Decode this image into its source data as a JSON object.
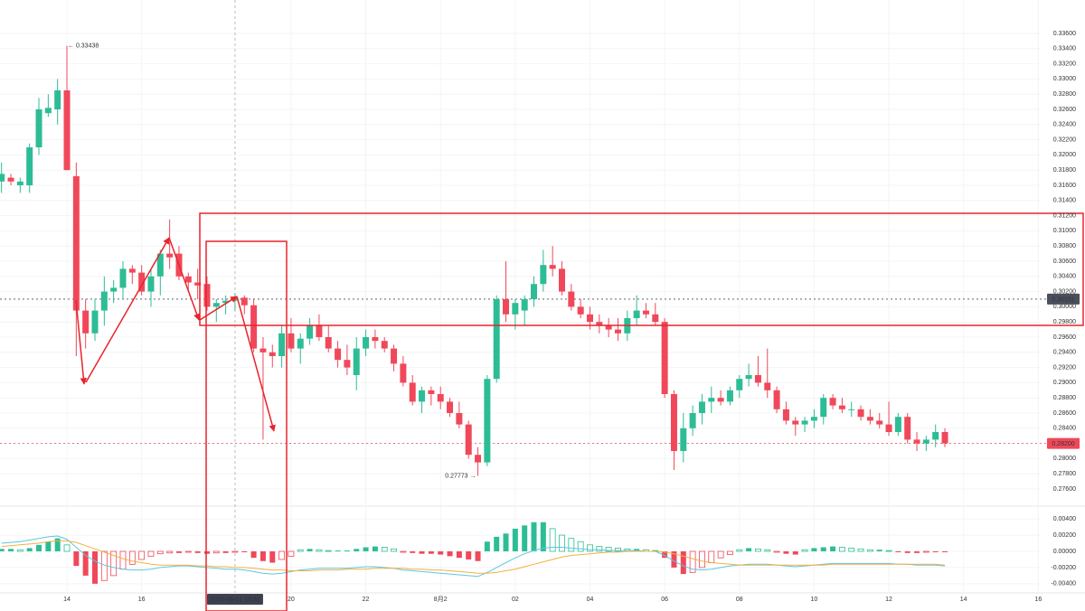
{
  "chart_data": {
    "type": "candlestick",
    "up_color": "#2dbd96",
    "down_color": "#f0485a",
    "candles": [
      [
        0.3165,
        0.319,
        0.315,
        0.3175
      ],
      [
        0.317,
        0.3175,
        0.316,
        0.3165
      ],
      [
        0.316,
        0.317,
        0.315,
        0.3165
      ],
      [
        0.316,
        0.3215,
        0.315,
        0.321
      ],
      [
        0.321,
        0.3275,
        0.32,
        0.326
      ],
      [
        0.3255,
        0.328,
        0.325,
        0.3262
      ],
      [
        0.326,
        0.33,
        0.324,
        0.3285
      ],
      [
        0.3285,
        0.33438,
        0.318,
        0.318
      ],
      [
        0.3172,
        0.319,
        0.2935,
        0.2995
      ],
      [
        0.2995,
        0.301,
        0.2945,
        0.2965
      ],
      [
        0.2965,
        0.301,
        0.2955,
        0.2995
      ],
      [
        0.2995,
        0.304,
        0.2975,
        0.302
      ],
      [
        0.302,
        0.3035,
        0.3005,
        0.3025
      ],
      [
        0.3025,
        0.306,
        0.301,
        0.305
      ],
      [
        0.305,
        0.3055,
        0.303,
        0.3045
      ],
      [
        0.3045,
        0.3055,
        0.3015,
        0.302
      ],
      [
        0.302,
        0.305,
        0.3,
        0.304
      ],
      [
        0.304,
        0.3075,
        0.3015,
        0.307
      ],
      [
        0.307,
        0.3115,
        0.305,
        0.3065
      ],
      [
        0.307,
        0.308,
        0.3035,
        0.304
      ],
      [
        0.304,
        0.3045,
        0.302,
        0.3032
      ],
      [
        0.3032,
        0.305,
        0.301,
        0.3028
      ],
      [
        0.303,
        0.304,
        0.2995,
        0.3
      ],
      [
        0.3,
        0.301,
        0.298,
        0.3005
      ],
      [
        0.3005,
        0.3015,
        0.299,
        0.3008
      ],
      [
        0.3008,
        0.3018,
        0.2995,
        0.3012
      ],
      [
        0.3012,
        0.3015,
        0.299,
        0.3002
      ],
      [
        0.3002,
        0.301,
        0.294,
        0.2945
      ],
      [
        0.2945,
        0.296,
        0.2825,
        0.294
      ],
      [
        0.294,
        0.295,
        0.292,
        0.2935
      ],
      [
        0.2935,
        0.2975,
        0.292,
        0.2965
      ],
      [
        0.2965,
        0.2985,
        0.294,
        0.2945
      ],
      [
        0.2945,
        0.2965,
        0.2925,
        0.2958
      ],
      [
        0.2958,
        0.2985,
        0.295,
        0.2975
      ],
      [
        0.2975,
        0.299,
        0.2955,
        0.296
      ],
      [
        0.296,
        0.2975,
        0.294,
        0.2945
      ],
      [
        0.2945,
        0.2955,
        0.292,
        0.293
      ],
      [
        0.293,
        0.295,
        0.291,
        0.292
      ],
      [
        0.291,
        0.296,
        0.289,
        0.2945
      ],
      [
        0.2945,
        0.297,
        0.2935,
        0.296
      ],
      [
        0.296,
        0.297,
        0.2945,
        0.2955
      ],
      [
        0.2955,
        0.296,
        0.294,
        0.2945
      ],
      [
        0.2945,
        0.295,
        0.2915,
        0.2925
      ],
      [
        0.2925,
        0.2935,
        0.2895,
        0.29
      ],
      [
        0.29,
        0.291,
        0.287,
        0.2875
      ],
      [
        0.2875,
        0.2895,
        0.286,
        0.289
      ],
      [
        0.289,
        0.2895,
        0.287,
        0.2885
      ],
      [
        0.2885,
        0.2895,
        0.2865,
        0.2875
      ],
      [
        0.2875,
        0.288,
        0.2855,
        0.286
      ],
      [
        0.286,
        0.2875,
        0.284,
        0.2845
      ],
      [
        0.2845,
        0.285,
        0.28,
        0.2805
      ],
      [
        0.2805,
        0.2815,
        0.27773,
        0.2795
      ],
      [
        0.2795,
        0.291,
        0.279,
        0.2905
      ],
      [
        0.2905,
        0.3015,
        0.29,
        0.301
      ],
      [
        0.301,
        0.306,
        0.298,
        0.299
      ],
      [
        0.299,
        0.301,
        0.297,
        0.3005
      ],
      [
        0.2995,
        0.3015,
        0.2975,
        0.301
      ],
      [
        0.301,
        0.304,
        0.3,
        0.303
      ],
      [
        0.303,
        0.3075,
        0.302,
        0.3055
      ],
      [
        0.3055,
        0.308,
        0.304,
        0.305
      ],
      [
        0.305,
        0.306,
        0.3015,
        0.302
      ],
      [
        0.302,
        0.303,
        0.2995,
        0.3
      ],
      [
        0.3,
        0.301,
        0.2985,
        0.299
      ],
      [
        0.299,
        0.3,
        0.297,
        0.298
      ],
      [
        0.298,
        0.299,
        0.2965,
        0.2975
      ],
      [
        0.2975,
        0.2985,
        0.296,
        0.297
      ],
      [
        0.297,
        0.2985,
        0.2955,
        0.2965
      ],
      [
        0.2965,
        0.2995,
        0.2955,
        0.2985
      ],
      [
        0.2985,
        0.3015,
        0.2975,
        0.2995
      ],
      [
        0.2995,
        0.3005,
        0.2985,
        0.299
      ],
      [
        0.299,
        0.3005,
        0.2975,
        0.298
      ],
      [
        0.298,
        0.2985,
        0.288,
        0.2885
      ],
      [
        0.2885,
        0.289,
        0.2785,
        0.281
      ],
      [
        0.281,
        0.286,
        0.2795,
        0.284
      ],
      [
        0.284,
        0.287,
        0.283,
        0.286
      ],
      [
        0.286,
        0.2885,
        0.2845,
        0.2875
      ],
      [
        0.2875,
        0.2895,
        0.286,
        0.288
      ],
      [
        0.288,
        0.289,
        0.287,
        0.2875
      ],
      [
        0.2875,
        0.2895,
        0.287,
        0.289
      ],
      [
        0.289,
        0.291,
        0.288,
        0.2905
      ],
      [
        0.2905,
        0.2925,
        0.2895,
        0.291
      ],
      [
        0.291,
        0.2935,
        0.2895,
        0.29
      ],
      [
        0.29,
        0.2945,
        0.288,
        0.289
      ],
      [
        0.289,
        0.2895,
        0.286,
        0.2865
      ],
      [
        0.2865,
        0.2875,
        0.2845,
        0.285
      ],
      [
        0.285,
        0.2855,
        0.283,
        0.2845
      ],
      [
        0.2845,
        0.2855,
        0.2835,
        0.285
      ],
      [
        0.285,
        0.2865,
        0.284,
        0.2855
      ],
      [
        0.2855,
        0.2885,
        0.2845,
        0.288
      ],
      [
        0.288,
        0.2885,
        0.2865,
        0.287
      ],
      [
        0.287,
        0.288,
        0.286,
        0.2865
      ],
      [
        0.2865,
        0.2875,
        0.2855,
        0.2865
      ],
      [
        0.2865,
        0.287,
        0.285,
        0.2855
      ],
      [
        0.2855,
        0.2865,
        0.2845,
        0.285
      ],
      [
        0.285,
        0.286,
        0.284,
        0.2845
      ],
      [
        0.2845,
        0.2875,
        0.283,
        0.2835
      ],
      [
        0.2835,
        0.286,
        0.283,
        0.2855
      ],
      [
        0.2855,
        0.286,
        0.282,
        0.2825
      ],
      [
        0.2825,
        0.2835,
        0.281,
        0.282
      ],
      [
        0.282,
        0.283,
        0.281,
        0.2825
      ],
      [
        0.2825,
        0.2845,
        0.2815,
        0.2835
      ],
      [
        0.2835,
        0.284,
        0.2815,
        0.282
      ]
    ],
    "ylim": [
      0.2742,
      0.3384
    ],
    "yticks": [
      {
        "value": 0.276,
        "label": "0.27600"
      },
      {
        "value": 0.278,
        "label": "0.27800"
      },
      {
        "value": 0.28,
        "label": "0.28000"
      },
      {
        "value": 0.282,
        "label": "0.28200"
      },
      {
        "value": 0.284,
        "label": "0.28400"
      },
      {
        "value": 0.286,
        "label": "0.28600"
      },
      {
        "value": 0.288,
        "label": "0.28800"
      },
      {
        "value": 0.29,
        "label": "0.29000"
      },
      {
        "value": 0.292,
        "label": "0.29200"
      },
      {
        "value": 0.294,
        "label": "0.29400"
      },
      {
        "value": 0.296,
        "label": "0.29600"
      },
      {
        "value": 0.298,
        "label": "0.29800"
      },
      {
        "value": 0.3,
        "label": "0.30000"
      },
      {
        "value": 0.302,
        "label": "0.30200"
      },
      {
        "value": 0.304,
        "label": "0.30400"
      },
      {
        "value": 0.306,
        "label": "0.30600"
      },
      {
        "value": 0.308,
        "label": "0.30800"
      },
      {
        "value": 0.31,
        "label": "0.31000"
      },
      {
        "value": 0.312,
        "label": "0.31200"
      },
      {
        "value": 0.314,
        "label": "0.31400"
      },
      {
        "value": 0.316,
        "label": "0.31600"
      },
      {
        "value": 0.318,
        "label": "0.31800"
      },
      {
        "value": 0.32,
        "label": "0.32000"
      },
      {
        "value": 0.322,
        "label": "0.32200"
      },
      {
        "value": 0.324,
        "label": "0.32400"
      },
      {
        "value": 0.326,
        "label": "0.32600"
      },
      {
        "value": 0.328,
        "label": "0.32800"
      },
      {
        "value": 0.33,
        "label": "0.33000"
      },
      {
        "value": 0.332,
        "label": "0.33200"
      },
      {
        "value": 0.334,
        "label": "0.33400"
      },
      {
        "value": 0.336,
        "label": "0.33600"
      }
    ],
    "xticks": [
      {
        "value": 7,
        "label": "14"
      },
      {
        "value": 15,
        "label": "16"
      },
      {
        "value": 31,
        "label": "20"
      },
      {
        "value": 39,
        "label": "22"
      },
      {
        "value": 47,
        "label": "8月2"
      },
      {
        "value": 55,
        "label": "02"
      },
      {
        "value": 63,
        "label": "04"
      },
      {
        "value": 71,
        "label": "06"
      },
      {
        "value": 79,
        "label": "08"
      },
      {
        "value": 87,
        "label": "10"
      },
      {
        "value": 95,
        "label": "12"
      },
      {
        "value": 103,
        "label": "14"
      },
      {
        "value": 111,
        "label": "16"
      }
    ],
    "price_lines": [
      {
        "value": 0.30101,
        "label": "0.30101",
        "color": "#4a4f5c"
      },
      {
        "value": 0.282,
        "label": "0.28200",
        "color": "#f0485a"
      }
    ],
    "annotations": [
      {
        "text": "← 0.33438",
        "value": 0.33438
      },
      {
        "text": "0.27773 →",
        "value": 0.27773
      }
    ],
    "crosshair_label": "2025-08-01 18:30",
    "crosshair_index": 25,
    "macd": {
      "ylim": [
        -0.0048,
        0.0048
      ],
      "yticks": [
        {
          "value": 0.004,
          "label": "0.00400"
        },
        {
          "value": 0.002,
          "label": "0.00200"
        },
        {
          "value": 0,
          "label": "0.00000"
        },
        {
          "value": -0.002,
          "label": "-0.00200"
        },
        {
          "value": -0.004,
          "label": "-0.00400"
        }
      ],
      "dif_color": "#5bc8e0",
      "dea_color": "#f5b041",
      "histogram": [
        0.0003,
        0.0003,
        0.0002,
        0.0004,
        0.0008,
        0.0012,
        0.0016,
        0.0008,
        -0.0018,
        -0.003,
        -0.004,
        -0.0036,
        -0.003,
        -0.0022,
        -0.0016,
        -0.001,
        -0.0006,
        -0.0003,
        -0.0002,
        -0.0002,
        -0.0001,
        -0.0002,
        -0.0003,
        -0.0002,
        -0.0002,
        -0.0001,
        -0.0001,
        -0.0008,
        -0.0012,
        -0.0014,
        -0.001,
        -0.0006,
        0.0002,
        0.0003,
        0.0002,
        0.0001,
        0.0001,
        0.0001,
        0.0003,
        0.0005,
        0.0006,
        0.0005,
        0.0003,
        -0.0001,
        -0.0002,
        -0.0003,
        -0.0003,
        -0.0004,
        -0.0006,
        -0.0008,
        -0.001,
        -0.0012,
        0.0012,
        0.0018,
        0.0022,
        0.0028,
        0.0032,
        0.0036,
        0.0036,
        0.0028,
        0.002,
        0.0016,
        0.0012,
        0.0008,
        0.0006,
        0.0005,
        0.0004,
        0.0003,
        0.0003,
        0.0002,
        0.0001,
        -0.0008,
        -0.002,
        -0.0028,
        -0.0026,
        -0.002,
        -0.0014,
        -0.0008,
        -0.0004,
        0.0002,
        0.0004,
        0.0003,
        0.0002,
        -0.0001,
        -0.0003,
        -0.0004,
        0.0002,
        0.0004,
        0.0005,
        0.0006,
        0.0005,
        0.0004,
        0.0003,
        0.0002,
        0.0002,
        0.0001,
        -0.0001,
        -0.0002,
        -0.0002,
        -0.0001,
        -0.0001,
        -0.0001
      ],
      "dif": [
        0.001,
        0.0011,
        0.0012,
        0.0014,
        0.0016,
        0.0018,
        0.0019,
        0.0015,
        0.0005,
        -0.0005,
        -0.0012,
        -0.0017,
        -0.002,
        -0.0022,
        -0.0023,
        -0.0023,
        -0.0022,
        -0.002,
        -0.0019,
        -0.0018,
        -0.0018,
        -0.0019,
        -0.002,
        -0.0021,
        -0.0022,
        -0.0022,
        -0.0023,
        -0.0025,
        -0.0027,
        -0.0028,
        -0.0027,
        -0.0025,
        -0.0023,
        -0.0022,
        -0.0021,
        -0.0021,
        -0.0021,
        -0.0021,
        -0.002,
        -0.0019,
        -0.0019,
        -0.002,
        -0.0021,
        -0.0023,
        -0.0024,
        -0.0025,
        -0.0026,
        -0.0027,
        -0.0028,
        -0.0029,
        -0.003,
        -0.0031,
        -0.0026,
        -0.002,
        -0.0014,
        -0.0008,
        -0.0003,
        0.0001,
        0.0004,
        0.0005,
        0.0005,
        0.0004,
        0.0003,
        0.0002,
        0.0002,
        0.0001,
        0.0001,
        0.0001,
        0.0001,
        0,
        0,
        -0.0005,
        -0.0012,
        -0.0018,
        -0.0022,
        -0.0023,
        -0.0022,
        -0.002,
        -0.0018,
        -0.0017,
        -0.0016,
        -0.0016,
        -0.0016,
        -0.0017,
        -0.0018,
        -0.0019,
        -0.0018,
        -0.0017,
        -0.0016,
        -0.0015,
        -0.0015,
        -0.0015,
        -0.0015,
        -0.0015,
        -0.0015,
        -0.0015,
        -0.0016,
        -0.0016,
        -0.0017,
        -0.0017,
        -0.0017,
        -0.0018
      ],
      "dea": [
        0.0006,
        0.0007,
        0.0008,
        0.0009,
        0.001,
        0.0012,
        0.0013,
        0.0013,
        0.0011,
        0.0007,
        0.0003,
        -0.0001,
        -0.0005,
        -0.0009,
        -0.0012,
        -0.0014,
        -0.0016,
        -0.0017,
        -0.0017,
        -0.0017,
        -0.0017,
        -0.0018,
        -0.0018,
        -0.0019,
        -0.0019,
        -0.002,
        -0.002,
        -0.0021,
        -0.0022,
        -0.0023,
        -0.0023,
        -0.0024,
        -0.0024,
        -0.0024,
        -0.0023,
        -0.0023,
        -0.0023,
        -0.0022,
        -0.0022,
        -0.0022,
        -0.0021,
        -0.0021,
        -0.0021,
        -0.0021,
        -0.0022,
        -0.0022,
        -0.0023,
        -0.0023,
        -0.0024,
        -0.0025,
        -0.0026,
        -0.0027,
        -0.0027,
        -0.0026,
        -0.0024,
        -0.0022,
        -0.0019,
        -0.0016,
        -0.0013,
        -0.001,
        -0.0007,
        -0.0005,
        -0.0004,
        -0.0003,
        -0.0002,
        -0.0001,
        -0.0001,
        0,
        0,
        0,
        0,
        -0.0001,
        -0.0003,
        -0.0006,
        -0.0009,
        -0.0012,
        -0.0014,
        -0.0015,
        -0.0016,
        -0.0017,
        -0.0017,
        -0.0017,
        -0.0017,
        -0.0017,
        -0.0017,
        -0.0017,
        -0.0017,
        -0.0017,
        -0.0017,
        -0.0016,
        -0.0016,
        -0.0016,
        -0.0016,
        -0.0016,
        -0.0016,
        -0.0016,
        -0.0016,
        -0.0016,
        -0.0016,
        -0.0016,
        -0.0016,
        -0.0017
      ]
    }
  }
}
